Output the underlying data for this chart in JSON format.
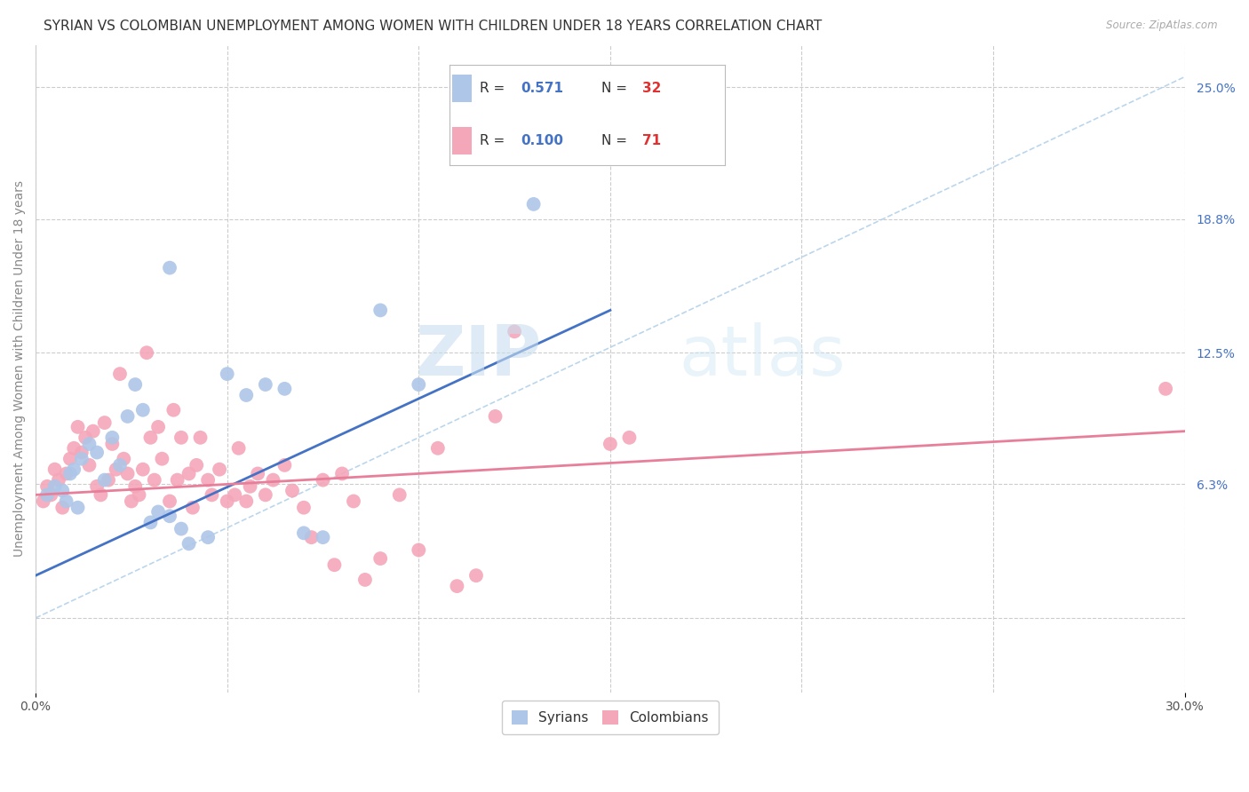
{
  "title": "SYRIAN VS COLOMBIAN UNEMPLOYMENT AMONG WOMEN WITH CHILDREN UNDER 18 YEARS CORRELATION CHART",
  "source": "Source: ZipAtlas.com",
  "ylabel": "Unemployment Among Women with Children Under 18 years",
  "xlim": [
    0.0,
    30.0
  ],
  "ylim": [
    -3.5,
    27.0
  ],
  "xtick_positions": [
    0.0,
    30.0
  ],
  "xtick_labels": [
    "0.0%",
    "30.0%"
  ],
  "right_ytick_positions": [
    6.3,
    12.5,
    18.8,
    25.0
  ],
  "right_ytick_labels": [
    "6.3%",
    "12.5%",
    "18.8%",
    "25.0%"
  ],
  "grid_ytick_positions": [
    0,
    6.3,
    12.5,
    18.8,
    25.0
  ],
  "syrian_color": "#aec6e8",
  "colombian_color": "#f4a7b9",
  "syrian_line_color": "#4472c4",
  "colombian_line_color": "#e87f9a",
  "ref_line_color": "#aacce8",
  "r_color": "#4472c4",
  "n_color": "#e03030",
  "syrian_R": "0.571",
  "syrian_N": "32",
  "colombian_R": "0.100",
  "colombian_N": "71",
  "background_color": "#ffffff",
  "grid_color": "#cccccc",
  "syrian_line_x": [
    0.0,
    15.0
  ],
  "syrian_line_y": [
    2.0,
    14.5
  ],
  "colombian_line_x": [
    0.0,
    30.0
  ],
  "colombian_line_y": [
    5.8,
    8.8
  ],
  "ref_line_x": [
    0.0,
    30.0
  ],
  "ref_line_y": [
    0.0,
    25.5
  ],
  "syrian_scatter": [
    [
      0.3,
      5.8
    ],
    [
      0.5,
      6.2
    ],
    [
      0.7,
      6.0
    ],
    [
      0.8,
      5.5
    ],
    [
      0.9,
      6.8
    ],
    [
      1.0,
      7.0
    ],
    [
      1.1,
      5.2
    ],
    [
      1.2,
      7.5
    ],
    [
      1.4,
      8.2
    ],
    [
      1.6,
      7.8
    ],
    [
      1.8,
      6.5
    ],
    [
      2.0,
      8.5
    ],
    [
      2.2,
      7.2
    ],
    [
      2.4,
      9.5
    ],
    [
      2.6,
      11.0
    ],
    [
      2.8,
      9.8
    ],
    [
      3.0,
      4.5
    ],
    [
      3.2,
      5.0
    ],
    [
      3.5,
      4.8
    ],
    [
      3.8,
      4.2
    ],
    [
      4.0,
      3.5
    ],
    [
      4.5,
      3.8
    ],
    [
      5.0,
      11.5
    ],
    [
      5.5,
      10.5
    ],
    [
      6.0,
      11.0
    ],
    [
      6.5,
      10.8
    ],
    [
      7.0,
      4.0
    ],
    [
      7.5,
      3.8
    ],
    [
      9.0,
      14.5
    ],
    [
      10.0,
      11.0
    ],
    [
      3.5,
      16.5
    ],
    [
      13.0,
      19.5
    ]
  ],
  "colombian_scatter": [
    [
      0.2,
      5.5
    ],
    [
      0.3,
      6.2
    ],
    [
      0.4,
      5.8
    ],
    [
      0.5,
      7.0
    ],
    [
      0.6,
      6.5
    ],
    [
      0.7,
      5.2
    ],
    [
      0.8,
      6.8
    ],
    [
      0.9,
      7.5
    ],
    [
      1.0,
      8.0
    ],
    [
      1.1,
      9.0
    ],
    [
      1.2,
      7.8
    ],
    [
      1.3,
      8.5
    ],
    [
      1.4,
      7.2
    ],
    [
      1.5,
      8.8
    ],
    [
      1.6,
      6.2
    ],
    [
      1.7,
      5.8
    ],
    [
      1.8,
      9.2
    ],
    [
      1.9,
      6.5
    ],
    [
      2.0,
      8.2
    ],
    [
      2.1,
      7.0
    ],
    [
      2.2,
      11.5
    ],
    [
      2.3,
      7.5
    ],
    [
      2.4,
      6.8
    ],
    [
      2.5,
      5.5
    ],
    [
      2.6,
      6.2
    ],
    [
      2.7,
      5.8
    ],
    [
      2.8,
      7.0
    ],
    [
      2.9,
      12.5
    ],
    [
      3.0,
      8.5
    ],
    [
      3.1,
      6.5
    ],
    [
      3.2,
      9.0
    ],
    [
      3.3,
      7.5
    ],
    [
      3.5,
      5.5
    ],
    [
      3.6,
      9.8
    ],
    [
      3.7,
      6.5
    ],
    [
      3.8,
      8.5
    ],
    [
      4.0,
      6.8
    ],
    [
      4.1,
      5.2
    ],
    [
      4.2,
      7.2
    ],
    [
      4.3,
      8.5
    ],
    [
      4.5,
      6.5
    ],
    [
      4.6,
      5.8
    ],
    [
      4.8,
      7.0
    ],
    [
      5.0,
      5.5
    ],
    [
      5.2,
      5.8
    ],
    [
      5.3,
      8.0
    ],
    [
      5.5,
      5.5
    ],
    [
      5.6,
      6.2
    ],
    [
      5.8,
      6.8
    ],
    [
      6.0,
      5.8
    ],
    [
      6.2,
      6.5
    ],
    [
      6.5,
      7.2
    ],
    [
      6.7,
      6.0
    ],
    [
      7.0,
      5.2
    ],
    [
      7.2,
      3.8
    ],
    [
      7.5,
      6.5
    ],
    [
      7.8,
      2.5
    ],
    [
      8.0,
      6.8
    ],
    [
      8.3,
      5.5
    ],
    [
      8.6,
      1.8
    ],
    [
      9.0,
      2.8
    ],
    [
      9.5,
      5.8
    ],
    [
      10.0,
      3.2
    ],
    [
      10.5,
      8.0
    ],
    [
      11.0,
      1.5
    ],
    [
      11.5,
      2.0
    ],
    [
      12.0,
      9.5
    ],
    [
      12.5,
      13.5
    ],
    [
      15.0,
      8.2
    ],
    [
      15.5,
      8.5
    ],
    [
      29.5,
      10.8
    ]
  ],
  "watermark_zip": "ZIP",
  "watermark_atlas": "atlas",
  "title_fontsize": 11,
  "axis_label_fontsize": 10,
  "tick_fontsize": 10,
  "legend_fontsize": 11
}
